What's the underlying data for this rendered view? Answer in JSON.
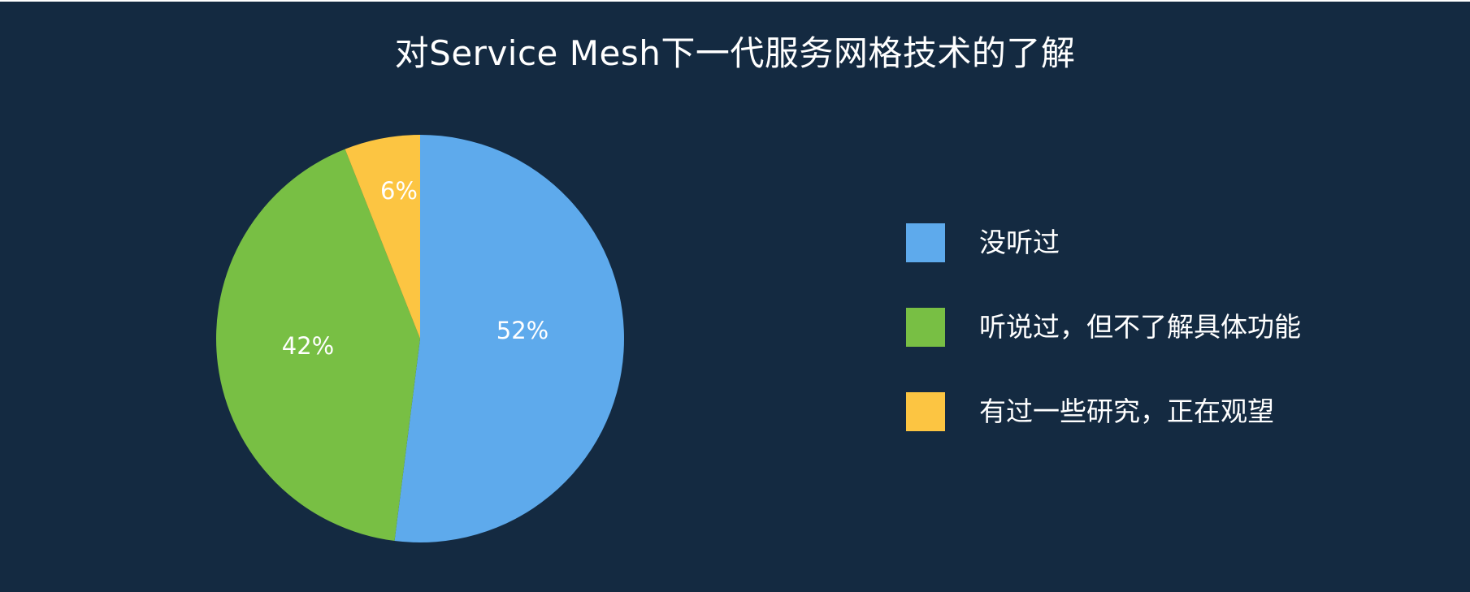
{
  "chart_data": {
    "type": "pie",
    "title": "对Service Mesh下一代服务网格技术的了解",
    "series": [
      {
        "name": "没听过",
        "value": 52,
        "label": "52%",
        "color": "#5eaaec"
      },
      {
        "name": "听说过，但不了解具体功能",
        "value": 42,
        "label": "42%",
        "color": "#78bf44"
      },
      {
        "name": "有过一些研究，正在观望",
        "value": 6,
        "label": "6%",
        "color": "#fcc542"
      }
    ],
    "legend_position": "right",
    "background": "#142a41"
  }
}
